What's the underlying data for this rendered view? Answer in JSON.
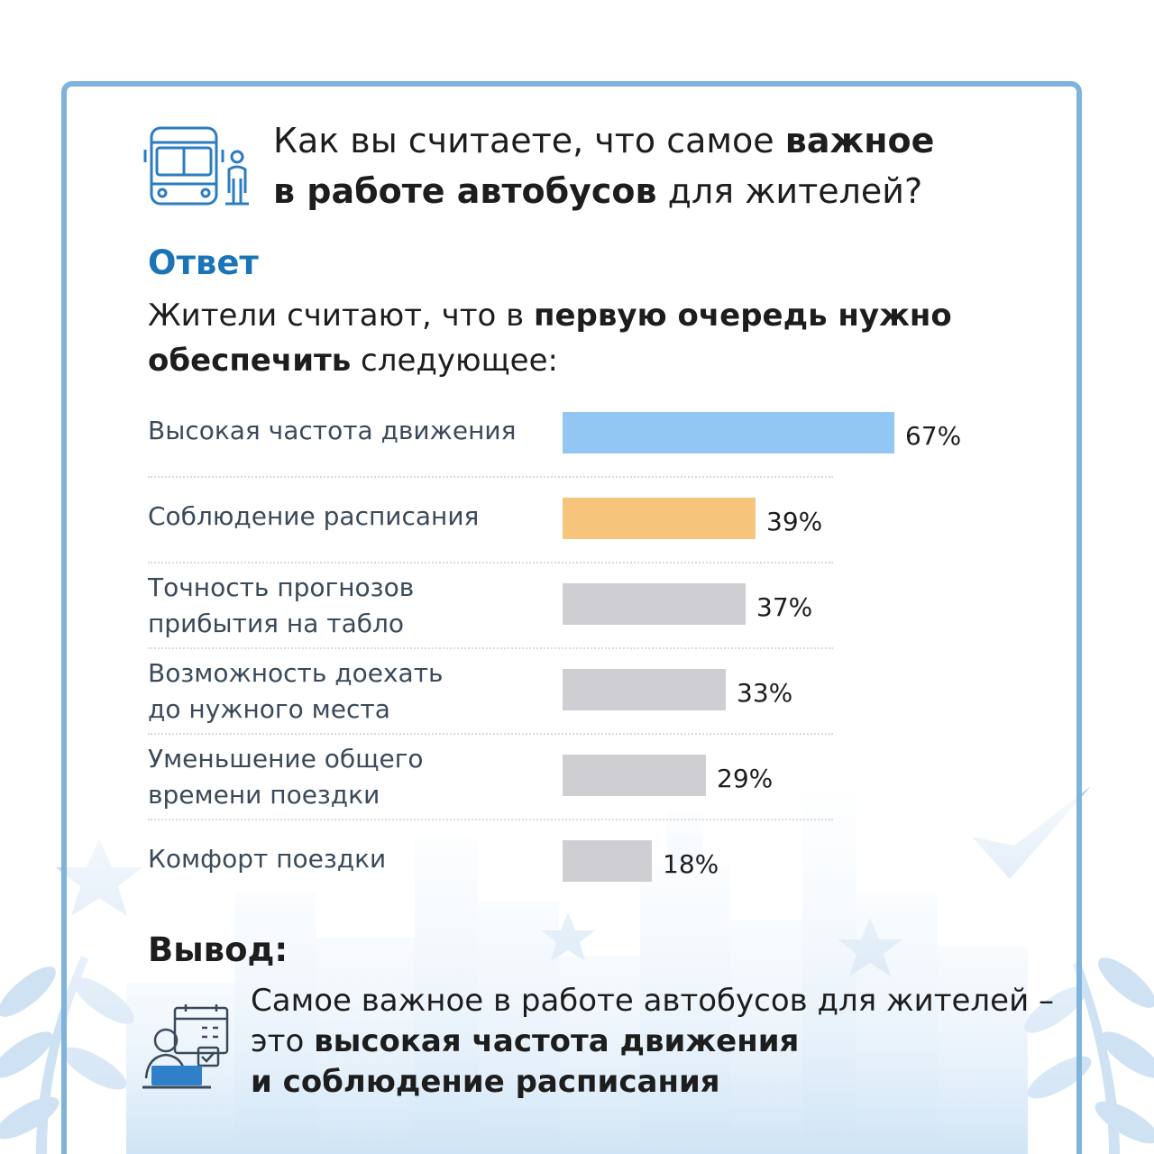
{
  "header": {
    "title_prefix": "Как вы считаете, что самое ",
    "title_bold_1": "важное",
    "title_bold_2": "в работе автобусов",
    "title_suffix": " для жителей?"
  },
  "answer": {
    "heading": "Ответ",
    "lead_prefix": "Жители считают, что в ",
    "lead_bold_1": "первую очередь нужно",
    "lead_bold_2": "обеспечить",
    "lead_suffix": " следующее:"
  },
  "chart_data": {
    "type": "bar",
    "orientation": "horizontal",
    "unit": "%",
    "xlim": [
      0,
      67
    ],
    "categories": [
      {
        "line1": "Высокая частота движения",
        "line2": ""
      },
      {
        "line1": "Соблюдение расписания",
        "line2": ""
      },
      {
        "line1": "Точность прогнозов",
        "line2": "прибытия на табло"
      },
      {
        "line1": "Возможность доехать",
        "line2": "до нужного места"
      },
      {
        "line1": "Уменьшение общего",
        "line2": "времени поездки"
      },
      {
        "line1": "Комфорт поездки",
        "line2": ""
      }
    ],
    "values": [
      67,
      39,
      37,
      33,
      29,
      18
    ],
    "value_labels": [
      "67%",
      "39%",
      "37%",
      "33%",
      "29%",
      "18%"
    ],
    "colors": [
      "#92c7f4",
      "#f6c47b",
      "#cfcfd3",
      "#cfcfd3",
      "#cfcfd3",
      "#cfcfd3"
    ]
  },
  "conclusion": {
    "heading": "Вывод:",
    "text_prefix": "Самое важное в работе автобусов для жителей – это ",
    "text_bold_1": "высокая частота движения",
    "text_bold_2": "и соблюдение расписания"
  },
  "icons": {
    "header": "bus-and-person-icon",
    "conclusion": "person-at-laptop-calendar-icon"
  },
  "colors": {
    "accent": "#1a74b6",
    "frame": "#7fb3dc",
    "decor": "#d9ebf8"
  }
}
